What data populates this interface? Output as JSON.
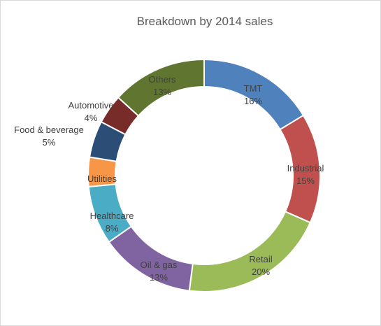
{
  "chart_data": {
    "type": "pie",
    "variant": "doughnut",
    "title": "Breakdown by 2014 sales",
    "legend": "none",
    "slices": [
      {
        "name": "TMT",
        "value": 16,
        "label": "16%",
        "color": "#4f81bd"
      },
      {
        "name": "Industrial",
        "value": 15,
        "label": "15%",
        "color": "#c0504d"
      },
      {
        "name": "Retail",
        "value": 20,
        "label": "20%",
        "color": "#9bbb59"
      },
      {
        "name": "Oil & gas",
        "value": 13,
        "label": "13%",
        "color": "#8064a2"
      },
      {
        "name": "Healthcare",
        "value": 8,
        "label": "8%",
        "color": "#4bacc6"
      },
      {
        "name": "Utilities",
        "value": 4,
        "label": "",
        "color": "#f79646"
      },
      {
        "name": "Food & beverage",
        "value": 5,
        "label": "5%",
        "color": "#2c4d75"
      },
      {
        "name": "Automotive",
        "value": 4,
        "label": "4%",
        "color": "#772c2a"
      },
      {
        "name": "Others",
        "value": 13,
        "label": "13%",
        "color": "#5f7530"
      }
    ]
  }
}
